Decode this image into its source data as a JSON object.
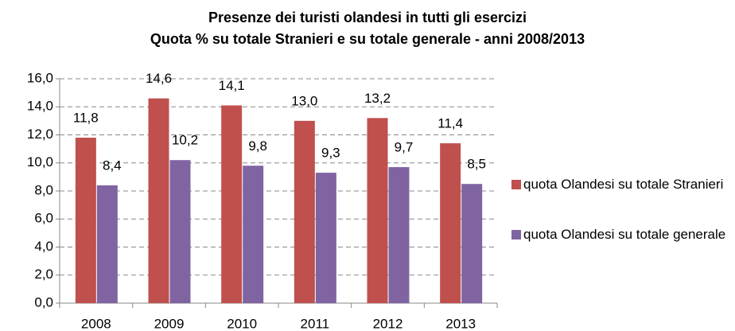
{
  "chart_data": {
    "type": "bar",
    "title": "Presenze dei turisti olandesi in tutti gli esercizi",
    "subtitle": "Quota % su totale Stranieri e su totale generale - anni 2008/2013",
    "categories": [
      "2008",
      "2009",
      "2010",
      "2011",
      "2012",
      "2013"
    ],
    "series": [
      {
        "name": "quota Olandesi su totale Stranieri",
        "color": "#c0504d",
        "values": [
          11.8,
          14.6,
          14.1,
          13.0,
          13.2,
          11.4
        ],
        "value_labels": [
          "11,8",
          "14,6",
          "14,1",
          "13,0",
          "13,2",
          "11,4"
        ]
      },
      {
        "name": "quota Olandesi su totale generale",
        "color": "#8064a2",
        "values": [
          8.4,
          10.2,
          9.8,
          9.3,
          9.7,
          8.5
        ],
        "value_labels": [
          "8,4",
          "10,2",
          "9,8",
          "9,3",
          "9,7",
          "8,5"
        ]
      }
    ],
    "ylim": [
      0,
      16
    ],
    "yticks": [
      {
        "value": 0,
        "label": "0,0"
      },
      {
        "value": 2,
        "label": "2,0"
      },
      {
        "value": 4,
        "label": "4,0"
      },
      {
        "value": 6,
        "label": "6,0"
      },
      {
        "value": 8,
        "label": "8,0"
      },
      {
        "value": 10,
        "label": "10,0"
      },
      {
        "value": 12,
        "label": "12,0"
      },
      {
        "value": 14,
        "label": "14,0"
      },
      {
        "value": 16,
        "label": "16,0"
      }
    ],
    "grid": true,
    "legend": "right"
  }
}
